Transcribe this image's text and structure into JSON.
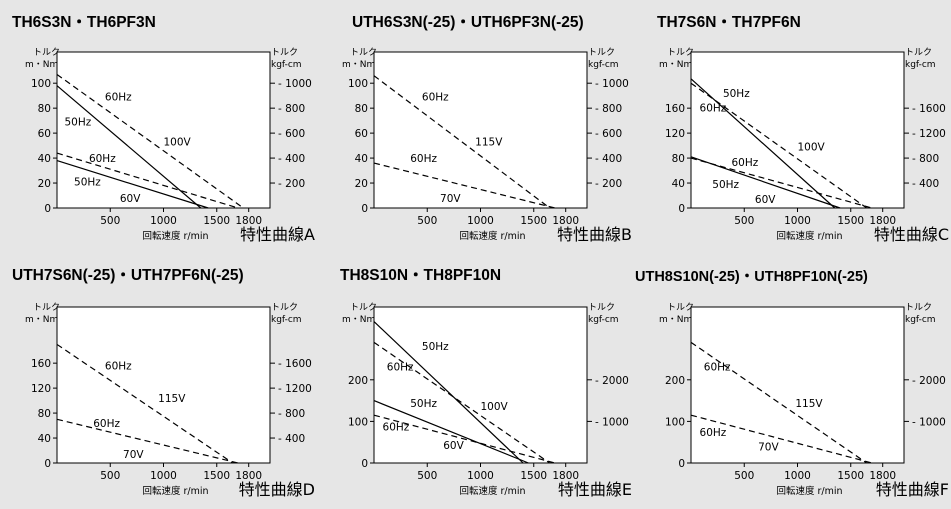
{
  "y_unit_left": [
    "トルク",
    "m・Nm"
  ],
  "y_unit_right": [
    "トルク",
    "kgf-cm"
  ],
  "x_axis_label": "回転速度 r/min",
  "chart_data": [
    {
      "type": "line",
      "title": "TH6S3N・TH6PF3N",
      "caption": "特性曲線A",
      "x_ticks": [
        500,
        1000,
        1500,
        1800
      ],
      "xlim": [
        0,
        2000
      ],
      "ylim": [
        0,
        125
      ],
      "y_ticks_left": [
        0,
        20,
        40,
        60,
        80,
        100
      ],
      "y_ticks_right": [
        200,
        400,
        600,
        800,
        1000
      ],
      "series": [
        {
          "name": "60Hz",
          "style": "dashed",
          "x": [
            0,
            1750
          ],
          "y": [
            107,
            0
          ]
        },
        {
          "name": "50Hz",
          "style": "solid",
          "x": [
            0,
            1350
          ],
          "y": [
            98,
            0
          ]
        },
        {
          "name": "60Hz",
          "style": "dashed",
          "x": [
            0,
            1700
          ],
          "y": [
            44,
            0
          ]
        },
        {
          "name": "50Hz",
          "style": "solid",
          "x": [
            0,
            1420
          ],
          "y": [
            38,
            0
          ]
        }
      ],
      "annotations": [
        {
          "text": "60Hz",
          "x": 450,
          "y": 86
        },
        {
          "text": "50Hz",
          "x": 70,
          "y": 66
        },
        {
          "text": "100V",
          "x": 1000,
          "y": 50
        },
        {
          "text": "60Hz",
          "x": 300,
          "y": 37
        },
        {
          "text": "50Hz",
          "x": 160,
          "y": 18
        },
        {
          "text": "60V",
          "x": 590,
          "y": 5
        }
      ]
    },
    {
      "type": "line",
      "title": "UTH6S3N(-25)・UTH6PF3N(-25)",
      "caption": "特性曲線B",
      "x_ticks": [
        500,
        1000,
        1500,
        1800
      ],
      "xlim": [
        0,
        2000
      ],
      "ylim": [
        0,
        125
      ],
      "y_ticks_left": [
        0,
        20,
        40,
        60,
        80,
        100
      ],
      "y_ticks_right": [
        200,
        400,
        600,
        800,
        1000
      ],
      "series": [
        {
          "name": "60Hz",
          "style": "dashed",
          "x": [
            0,
            1650
          ],
          "y": [
            106,
            0
          ]
        },
        {
          "name": "60Hz",
          "style": "dashed",
          "x": [
            0,
            1700
          ],
          "y": [
            36,
            0
          ]
        }
      ],
      "annotations": [
        {
          "text": "60Hz",
          "x": 450,
          "y": 86
        },
        {
          "text": "115V",
          "x": 950,
          "y": 50
        },
        {
          "text": "60Hz",
          "x": 340,
          "y": 37
        },
        {
          "text": "70V",
          "x": 620,
          "y": 5
        }
      ]
    },
    {
      "type": "line",
      "title": "TH7S6N・TH7PF6N",
      "caption": "特性曲線C",
      "x_ticks": [
        500,
        1000,
        1500,
        1800
      ],
      "xlim": [
        0,
        2000
      ],
      "ylim": [
        0,
        250
      ],
      "y_ticks_left": [
        40,
        80,
        120,
        160
      ],
      "y_ticks_right": [
        400,
        800,
        1200,
        1600
      ],
      "series": [
        {
          "name": "50Hz",
          "style": "solid",
          "x": [
            0,
            1350
          ],
          "y": [
            207,
            0
          ]
        },
        {
          "name": "60Hz",
          "style": "dashed",
          "x": [
            0,
            1650
          ],
          "y": [
            200,
            0
          ]
        },
        {
          "name": "60Hz",
          "style": "dashed",
          "x": [
            0,
            1700
          ],
          "y": [
            80,
            0
          ]
        },
        {
          "name": "50Hz",
          "style": "solid",
          "x": [
            0,
            1400
          ],
          "y": [
            82,
            0
          ]
        }
      ],
      "annotations": [
        {
          "text": "50Hz",
          "x": 300,
          "y": 178
        },
        {
          "text": "60Hz",
          "x": 80,
          "y": 155
        },
        {
          "text": "100V",
          "x": 1000,
          "y": 92
        },
        {
          "text": "60Hz",
          "x": 380,
          "y": 67
        },
        {
          "text": "50Hz",
          "x": 200,
          "y": 32
        },
        {
          "text": "60V",
          "x": 600,
          "y": 8
        }
      ]
    },
    {
      "type": "line",
      "title": "UTH7S6N(-25)・UTH7PF6N(-25)",
      "caption": "特性曲線D",
      "x_ticks": [
        500,
        1000,
        1500,
        1800
      ],
      "xlim": [
        0,
        2000
      ],
      "ylim": [
        0,
        250
      ],
      "y_ticks_left": [
        40,
        80,
        120,
        160
      ],
      "y_ticks_right": [
        400,
        800,
        1200,
        1600
      ],
      "series": [
        {
          "name": "60Hz",
          "style": "dashed",
          "x": [
            0,
            1650
          ],
          "y": [
            190,
            0
          ]
        },
        {
          "name": "60Hz",
          "style": "dashed",
          "x": [
            0,
            1700
          ],
          "y": [
            70,
            0
          ]
        }
      ],
      "annotations": [
        {
          "text": "60Hz",
          "x": 450,
          "y": 150
        },
        {
          "text": "115V",
          "x": 950,
          "y": 98
        },
        {
          "text": "60Hz",
          "x": 340,
          "y": 58
        },
        {
          "text": "70V",
          "x": 620,
          "y": 8
        }
      ]
    },
    {
      "type": "line",
      "title": "TH8S10N・TH8PF10N",
      "caption": "特性曲線E",
      "x_ticks": [
        500,
        1000,
        1500,
        1800
      ],
      "xlim": [
        0,
        2000
      ],
      "ylim": [
        0,
        375
      ],
      "y_ticks_left": [
        100,
        200
      ],
      "y_ticks_right": [
        1000,
        2000
      ],
      "series": [
        {
          "name": "50Hz",
          "style": "solid",
          "x": [
            0,
            1400
          ],
          "y": [
            340,
            0
          ]
        },
        {
          "name": "60Hz",
          "style": "dashed",
          "x": [
            0,
            1650
          ],
          "y": [
            290,
            0
          ]
        },
        {
          "name": "50Hz",
          "style": "solid",
          "x": [
            0,
            1450
          ],
          "y": [
            150,
            0
          ]
        },
        {
          "name": "60Hz",
          "style": "dashed",
          "x": [
            0,
            1700
          ],
          "y": [
            115,
            0
          ]
        }
      ],
      "annotations": [
        {
          "text": "50Hz",
          "x": 450,
          "y": 272
        },
        {
          "text": "60Hz",
          "x": 120,
          "y": 222
        },
        {
          "text": "100V",
          "x": 1000,
          "y": 128
        },
        {
          "text": "50Hz",
          "x": 340,
          "y": 135
        },
        {
          "text": "60Hz",
          "x": 80,
          "y": 78
        },
        {
          "text": "60V",
          "x": 650,
          "y": 34
        }
      ]
    },
    {
      "type": "line",
      "title": "UTH8S10N(-25)・UTH8PF10N(-25)",
      "caption": "特性曲線F",
      "x_ticks": [
        500,
        1000,
        1500,
        1800
      ],
      "xlim": [
        0,
        2000
      ],
      "ylim": [
        0,
        375
      ],
      "y_ticks_left": [
        100,
        200
      ],
      "y_ticks_right": [
        1000,
        2000
      ],
      "series": [
        {
          "name": "60Hz",
          "style": "dashed",
          "x": [
            0,
            1650
          ],
          "y": [
            290,
            0
          ]
        },
        {
          "name": "60Hz",
          "style": "dashed",
          "x": [
            0,
            1700
          ],
          "y": [
            115,
            0
          ]
        }
      ],
      "annotations": [
        {
          "text": "60Hz",
          "x": 120,
          "y": 222
        },
        {
          "text": "115V",
          "x": 980,
          "y": 135
        },
        {
          "text": "60Hz",
          "x": 80,
          "y": 65
        },
        {
          "text": "70V",
          "x": 630,
          "y": 30
        }
      ]
    }
  ]
}
